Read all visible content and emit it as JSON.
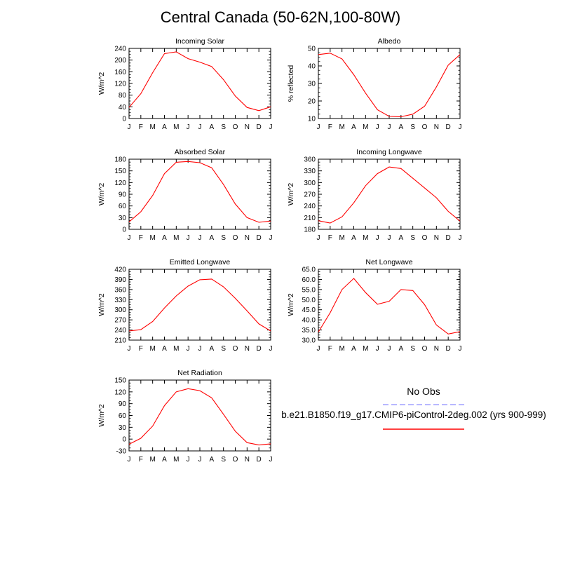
{
  "title": "Central Canada (50-62N,100-80W)",
  "legend": {
    "obs_label": "No Obs",
    "obs_color": "#a0a0ff",
    "run_label": "b.e21.B1850.f19_g17.CMIP6-piControl-2deg.002 (yrs 900-999)",
    "run_color": "#ff0000"
  },
  "chart_data": [
    {
      "type": "line",
      "title": "Incoming Solar",
      "ylabel": "W/m^2",
      "categories": [
        "J",
        "F",
        "M",
        "A",
        "M",
        "J",
        "J",
        "A",
        "S",
        "O",
        "N",
        "D",
        "J"
      ],
      "ylim": [
        0,
        240
      ],
      "yticks": [
        "0",
        "40",
        "80",
        "120",
        "160",
        "200",
        "240"
      ],
      "values": [
        38,
        85,
        157,
        222,
        228,
        205,
        193,
        178,
        133,
        77,
        38,
        27,
        40
      ],
      "color": "#ff0000"
    },
    {
      "type": "line",
      "title": "Albedo",
      "ylabel": "% reflected",
      "categories": [
        "J",
        "F",
        "M",
        "A",
        "M",
        "J",
        "J",
        "A",
        "S",
        "O",
        "N",
        "D",
        "J"
      ],
      "ylim": [
        10,
        50
      ],
      "yticks": [
        "10",
        "20",
        "30",
        "40",
        "50"
      ],
      "values": [
        46.5,
        47.3,
        44.0,
        35.0,
        24.5,
        15.0,
        11.2,
        11.0,
        12.5,
        17.0,
        28.0,
        40.5,
        46.5
      ],
      "color": "#ff0000"
    },
    {
      "type": "line",
      "title": "Absorbed Solar",
      "ylabel": "W/m^2",
      "categories": [
        "J",
        "F",
        "M",
        "A",
        "M",
        "J",
        "J",
        "A",
        "S",
        "O",
        "N",
        "D",
        "J"
      ],
      "ylim": [
        0,
        180
      ],
      "yticks": [
        "0",
        "30",
        "60",
        "90",
        "120",
        "150",
        "180"
      ],
      "values": [
        19,
        45,
        87,
        143,
        172,
        174,
        171,
        158,
        115,
        65,
        30,
        18,
        21
      ],
      "color": "#ff0000"
    },
    {
      "type": "line",
      "title": "Incoming Longwave",
      "ylabel": "W/m^2",
      "categories": [
        "J",
        "F",
        "M",
        "A",
        "M",
        "J",
        "J",
        "A",
        "S",
        "O",
        "N",
        "D",
        "J"
      ],
      "ylim": [
        180,
        360
      ],
      "yticks": [
        "180",
        "210",
        "240",
        "270",
        "300",
        "330",
        "360"
      ],
      "values": [
        202,
        196,
        212,
        248,
        292,
        323,
        340,
        336,
        311,
        286,
        261,
        226,
        201
      ],
      "color": "#ff0000"
    },
    {
      "type": "line",
      "title": "Emitted Longwave",
      "ylabel": "W/m^2",
      "categories": [
        "J",
        "F",
        "M",
        "A",
        "M",
        "J",
        "J",
        "A",
        "S",
        "O",
        "N",
        "D",
        "J"
      ],
      "ylim": [
        210,
        420
      ],
      "yticks": [
        "210",
        "240",
        "270",
        "300",
        "330",
        "360",
        "390",
        "420"
      ],
      "values": [
        237,
        241,
        265,
        305,
        341,
        370,
        389,
        391,
        368,
        334,
        297,
        258,
        237
      ],
      "color": "#ff0000"
    },
    {
      "type": "line",
      "title": "Net Longwave",
      "ylabel": "W/m^2",
      "categories": [
        "J",
        "F",
        "M",
        "A",
        "M",
        "J",
        "J",
        "A",
        "S",
        "O",
        "N",
        "D",
        "J"
      ],
      "ylim": [
        30,
        65
      ],
      "yticks": [
        "30.0",
        "35.0",
        "40.0",
        "45.0",
        "50.0",
        "55.0",
        "60.0",
        "65.0"
      ],
      "values": [
        34.0,
        43.5,
        55.0,
        60.5,
        53.5,
        47.7,
        49.2,
        55.0,
        54.5,
        47.5,
        37.5,
        33.0,
        34.2
      ],
      "color": "#ff0000"
    },
    {
      "type": "line",
      "title": "Net Radiation",
      "ylabel": "W/m^2",
      "categories": [
        "J",
        "F",
        "M",
        "A",
        "M",
        "J",
        "J",
        "A",
        "S",
        "O",
        "N",
        "D",
        "J"
      ],
      "ylim": [
        -30,
        150
      ],
      "yticks": [
        "-30",
        "0",
        "30",
        "60",
        "90",
        "120",
        "150"
      ],
      "values": [
        -13,
        2,
        33,
        85,
        120,
        128,
        123,
        105,
        63,
        20,
        -9,
        -15,
        -12
      ],
      "color": "#ff0000"
    }
  ]
}
